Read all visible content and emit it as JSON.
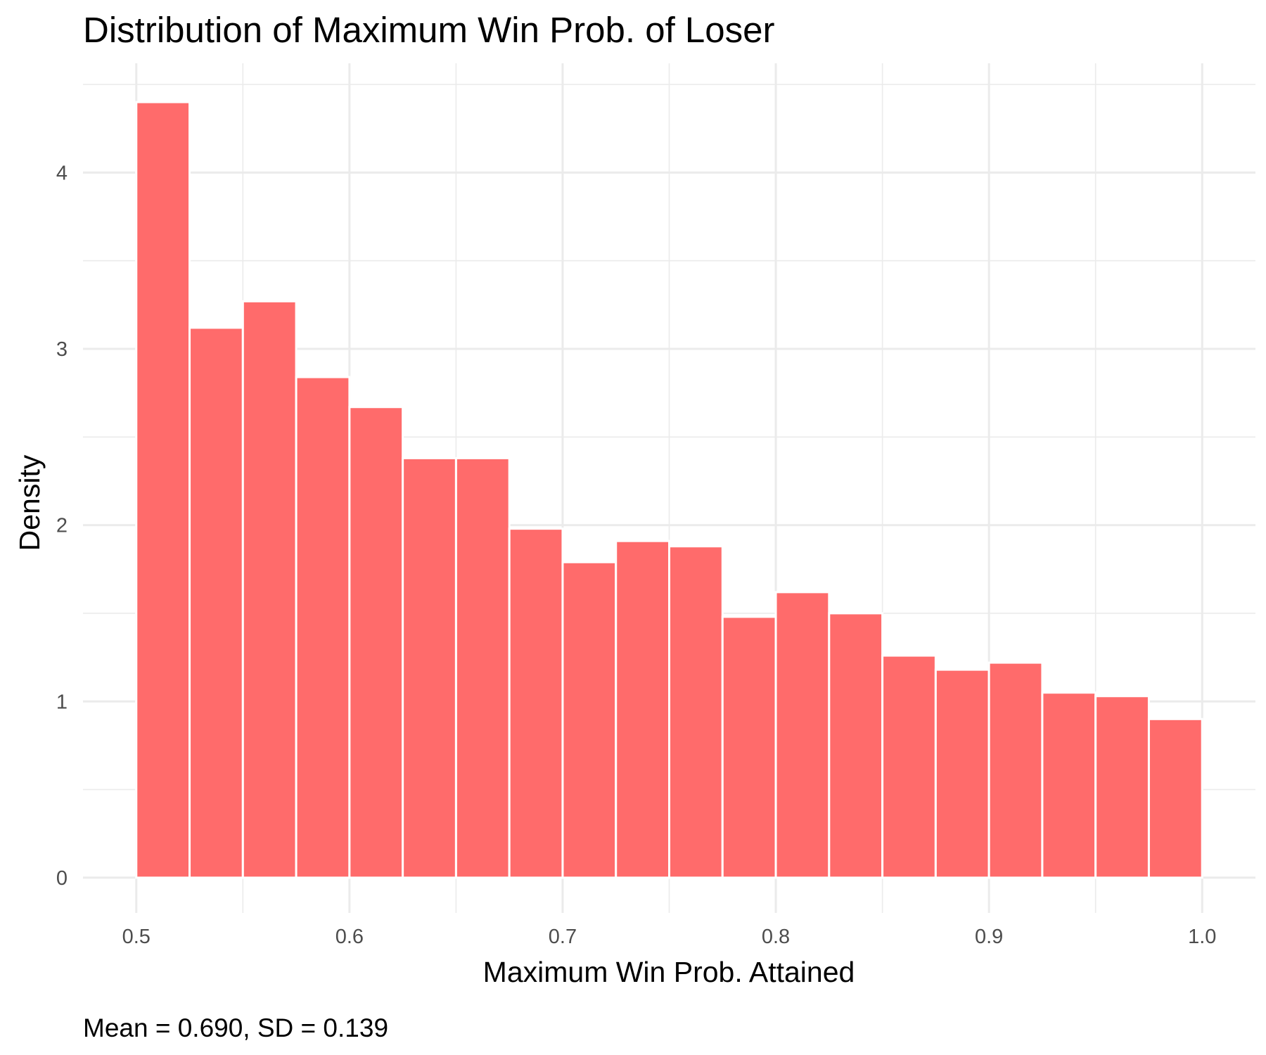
{
  "chart_data": {
    "type": "bar",
    "title": "Distribution of Maximum Win Prob. of Loser",
    "xlabel": "Maximum Win Prob. Attained",
    "ylabel": "Density",
    "caption": "Mean = 0.690, SD = 0.139",
    "bin_width": 0.025,
    "bin_starts": [
      0.5,
      0.525,
      0.55,
      0.575,
      0.6,
      0.625,
      0.65,
      0.675,
      0.7,
      0.725,
      0.75,
      0.775,
      0.8,
      0.825,
      0.85,
      0.875,
      0.9,
      0.925,
      0.95,
      0.975
    ],
    "values": [
      4.4,
      3.12,
      3.27,
      2.84,
      2.67,
      2.38,
      2.38,
      1.98,
      1.79,
      1.91,
      1.88,
      1.48,
      1.62,
      1.5,
      1.26,
      1.18,
      1.22,
      1.05,
      1.03,
      0.9
    ],
    "xlim": [
      0.475,
      1.025
    ],
    "ylim": [
      -0.2,
      4.62
    ],
    "x_ticks": [
      0.5,
      0.6,
      0.7,
      0.8,
      0.9,
      1.0
    ],
    "x_tick_labels": [
      "0.5",
      "0.6",
      "0.7",
      "0.8",
      "0.9",
      "1.0"
    ],
    "y_ticks": [
      0,
      1,
      2,
      3,
      4
    ],
    "y_tick_labels": [
      "0",
      "1",
      "2",
      "3",
      "4"
    ],
    "grid": true,
    "legend": "none",
    "bar_color": "#ff6b6b",
    "grid_color": "#ebebeb"
  }
}
